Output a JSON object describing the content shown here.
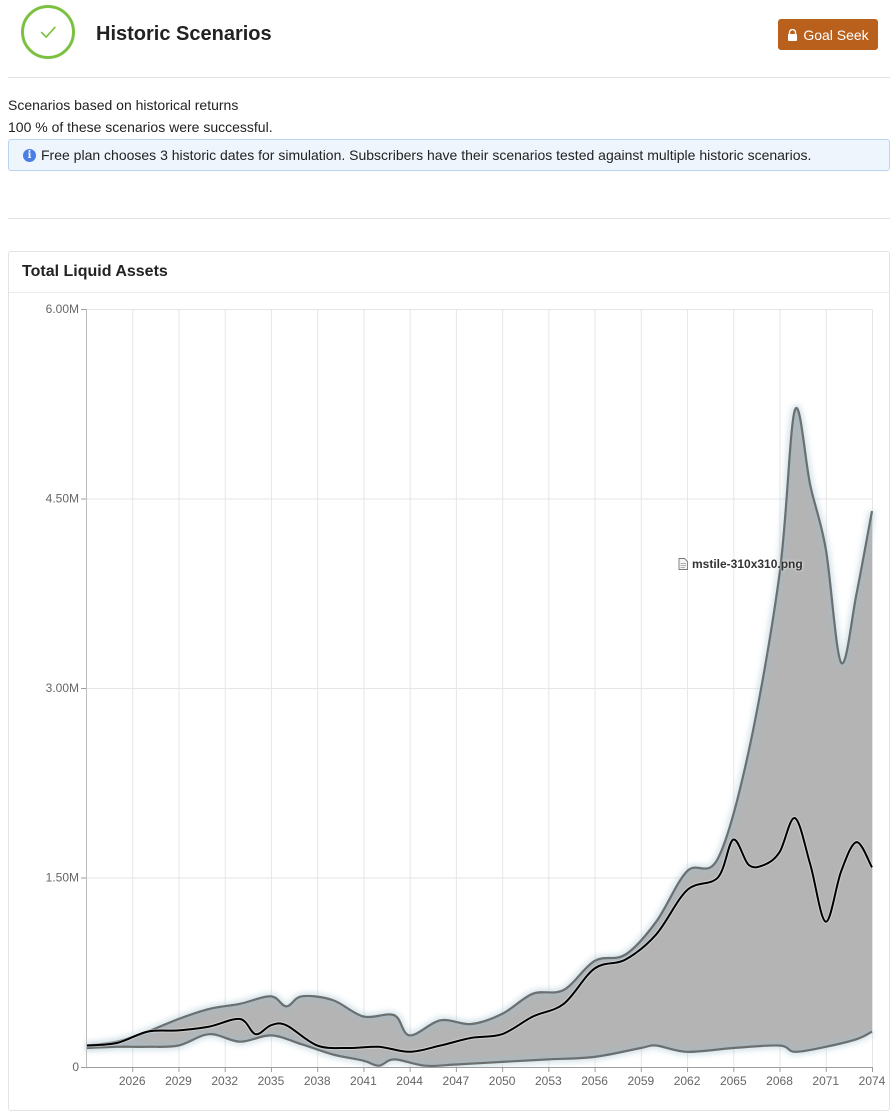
{
  "header": {
    "title": "Historic Scenarios",
    "goal_seek_label": "Goal Seek"
  },
  "description": {
    "line1": "Scenarios based on historical returns",
    "line2": "100 % of these scenarios were successful."
  },
  "notice": {
    "text": "Free plan chooses 3 historic dates for simulation. Subscribers have their scenarios tested against multiple historic scenarios."
  },
  "card": {
    "title": "Total Liquid Assets"
  },
  "overlay": {
    "file_label": "mstile-310x310.png"
  },
  "colors": {
    "success": "#7cc142",
    "button": "#b8601c",
    "band_fill": "#b4b4b4",
    "band_edge": "#6b6f6f",
    "median": "#000000",
    "info": "#4a7de6"
  },
  "chart_data": {
    "type": "area",
    "title": "",
    "xlabel": "",
    "ylabel": "",
    "ylim": [
      0,
      6000000
    ],
    "yticks": [
      0,
      1500000,
      3000000,
      4500000,
      6000000
    ],
    "ytick_labels": [
      "0",
      "1.50M",
      "3.00M",
      "4.50M",
      "6.00M"
    ],
    "xlim": [
      2023,
      2074
    ],
    "xticks": [
      2026,
      2029,
      2032,
      2035,
      2038,
      2041,
      2044,
      2047,
      2050,
      2053,
      2056,
      2059,
      2062,
      2065,
      2068,
      2071,
      2074
    ],
    "grid": true,
    "legend": "none",
    "series": [
      {
        "role": "upper",
        "x": [
          2023,
          2025,
          2027,
          2029,
          2031,
          2033,
          2035,
          2036,
          2037,
          2039,
          2041,
          2043,
          2044,
          2046,
          2048,
          2050,
          2052,
          2054,
          2056,
          2058,
          2060,
          2062,
          2064,
          2066,
          2068,
          2069,
          2070,
          2071,
          2072,
          2073,
          2074
        ],
        "y": [
          170000,
          200000,
          280000,
          380000,
          460000,
          500000,
          560000,
          480000,
          560000,
          530000,
          400000,
          410000,
          250000,
          370000,
          340000,
          420000,
          580000,
          610000,
          840000,
          890000,
          1150000,
          1550000,
          1650000,
          2500000,
          3900000,
          5200000,
          4600000,
          4100000,
          3200000,
          3750000,
          4400000
        ]
      },
      {
        "role": "median",
        "x": [
          2023,
          2025,
          2027,
          2029,
          2031,
          2033,
          2034,
          2035,
          2036,
          2038,
          2040,
          2042,
          2044,
          2046,
          2048,
          2050,
          2052,
          2054,
          2056,
          2058,
          2060,
          2062,
          2064,
          2065,
          2066,
          2067,
          2068,
          2069,
          2070,
          2071,
          2072,
          2073,
          2074
        ],
        "y": [
          170000,
          190000,
          280000,
          290000,
          320000,
          380000,
          260000,
          330000,
          330000,
          170000,
          150000,
          160000,
          120000,
          170000,
          230000,
          260000,
          400000,
          500000,
          780000,
          850000,
          1050000,
          1400000,
          1500000,
          1800000,
          1600000,
          1600000,
          1700000,
          1970000,
          1600000,
          1150000,
          1550000,
          1780000,
          1580000
        ]
      },
      {
        "role": "lower",
        "x": [
          2023,
          2025,
          2027,
          2029,
          2031,
          2033,
          2035,
          2037,
          2039,
          2041,
          2042,
          2043,
          2045,
          2047,
          2050,
          2053,
          2056,
          2059,
          2060,
          2062,
          2065,
          2068,
          2069,
          2071,
          2073,
          2074
        ],
        "y": [
          150000,
          160000,
          160000,
          170000,
          260000,
          200000,
          250000,
          180000,
          100000,
          50000,
          10000,
          60000,
          10000,
          20000,
          40000,
          60000,
          80000,
          150000,
          170000,
          120000,
          150000,
          170000,
          120000,
          160000,
          220000,
          280000
        ]
      }
    ]
  }
}
